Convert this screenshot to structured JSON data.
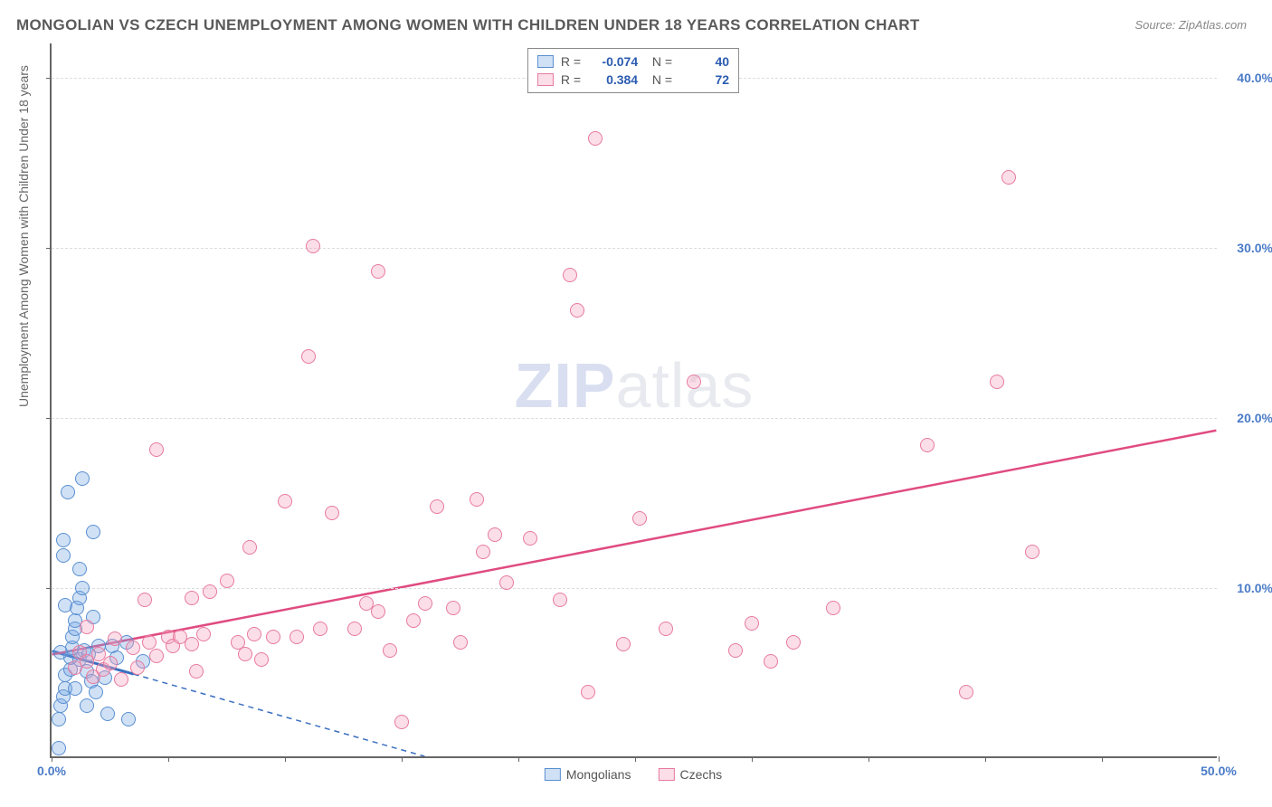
{
  "title": "MONGOLIAN VS CZECH UNEMPLOYMENT AMONG WOMEN WITH CHILDREN UNDER 18 YEARS CORRELATION CHART",
  "source": "Source: ZipAtlas.com",
  "y_label": "Unemployment Among Women with Children Under 18 years",
  "watermark_a": "ZIP",
  "watermark_b": "atlas",
  "chart": {
    "type": "scatter",
    "xlim": [
      0,
      50
    ],
    "ylim": [
      0,
      42
    ],
    "x_ticks": [
      0,
      5,
      10,
      15,
      20,
      25,
      30,
      35,
      40,
      45,
      50
    ],
    "x_tick_labels_shown": {
      "0": "0.0%",
      "50": "50.0%"
    },
    "y_ticks": [
      10,
      20,
      30,
      40
    ],
    "y_tick_labels": {
      "10": "10.0%",
      "20": "20.0%",
      "30": "30.0%",
      "40": "40.0%"
    },
    "grid_color": "#dddddd",
    "axis_color": "#666666",
    "label_color": "#4a7bc8",
    "label_fontsize": 14,
    "marker_radius": 8,
    "marker_stroke_width": 1.5,
    "background_color": "#ffffff"
  },
  "series": [
    {
      "name": "Mongolians",
      "fill": "rgba(120,170,230,0.35)",
      "stroke": "#5a8fd0",
      "R": "-0.074",
      "N": "40",
      "trend": {
        "x1": 0,
        "y1": 6.2,
        "x2": 16,
        "y2": 0,
        "color": "#3a6fc0",
        "width": 2,
        "dash": "6,5",
        "solid_until_x": 3.5
      },
      "points": [
        [
          0.3,
          0.5
        ],
        [
          0.3,
          2.2
        ],
        [
          0.4,
          3.0
        ],
        [
          0.5,
          3.5
        ],
        [
          0.6,
          4.0
        ],
        [
          0.6,
          4.8
        ],
        [
          0.8,
          5.1
        ],
        [
          0.8,
          5.8
        ],
        [
          0.9,
          6.4
        ],
        [
          0.9,
          7.0
        ],
        [
          1.0,
          7.5
        ],
        [
          1.0,
          8.0
        ],
        [
          1.1,
          8.7
        ],
        [
          1.2,
          9.3
        ],
        [
          1.3,
          9.9
        ],
        [
          1.2,
          11.0
        ],
        [
          0.5,
          11.8
        ],
        [
          0.5,
          12.7
        ],
        [
          1.2,
          5.7
        ],
        [
          1.4,
          6.2
        ],
        [
          1.5,
          3.0
        ],
        [
          1.5,
          5.0
        ],
        [
          1.6,
          6.0
        ],
        [
          1.7,
          4.4
        ],
        [
          1.8,
          8.2
        ],
        [
          1.9,
          3.8
        ],
        [
          2.0,
          6.5
        ],
        [
          2.3,
          4.6
        ],
        [
          2.4,
          2.5
        ],
        [
          2.8,
          5.8
        ],
        [
          3.2,
          6.7
        ],
        [
          3.3,
          2.2
        ],
        [
          3.9,
          5.6
        ],
        [
          0.7,
          15.5
        ],
        [
          1.3,
          16.3
        ],
        [
          1.8,
          13.2
        ],
        [
          2.6,
          6.5
        ],
        [
          0.4,
          6.1
        ],
        [
          0.6,
          8.9
        ],
        [
          1.0,
          4.0
        ]
      ]
    },
    {
      "name": "Czechs",
      "fill": "rgba(245,160,190,0.35)",
      "stroke": "#e67aa0",
      "R": "0.384",
      "N": "72",
      "trend": {
        "x1": 0,
        "y1": 6.0,
        "x2": 50,
        "y2": 19.2,
        "color": "#e04b80",
        "width": 2.5,
        "dash": "none"
      },
      "points": [
        [
          1.0,
          5.2
        ],
        [
          1.2,
          6.1
        ],
        [
          1.5,
          5.6
        ],
        [
          1.5,
          7.6
        ],
        [
          1.8,
          4.7
        ],
        [
          2.0,
          6.0
        ],
        [
          2.2,
          5.1
        ],
        [
          2.7,
          6.9
        ],
        [
          3.0,
          4.5
        ],
        [
          3.5,
          6.4
        ],
        [
          3.7,
          5.2
        ],
        [
          4.2,
          6.7
        ],
        [
          4.5,
          5.9
        ],
        [
          4.5,
          18.0
        ],
        [
          5.0,
          7.0
        ],
        [
          5.2,
          6.5
        ],
        [
          5.5,
          7.0
        ],
        [
          6.0,
          6.6
        ],
        [
          6.0,
          9.3
        ],
        [
          6.2,
          5.0
        ],
        [
          6.5,
          7.2
        ],
        [
          7.5,
          10.3
        ],
        [
          8.0,
          6.7
        ],
        [
          8.3,
          6.0
        ],
        [
          8.7,
          7.2
        ],
        [
          9.0,
          5.7
        ],
        [
          9.5,
          7.0
        ],
        [
          10.0,
          15.0
        ],
        [
          10.5,
          7.0
        ],
        [
          11.0,
          23.5
        ],
        [
          11.2,
          30.0
        ],
        [
          12.0,
          14.3
        ],
        [
          13.0,
          7.5
        ],
        [
          13.5,
          9.0
        ],
        [
          14.0,
          8.5
        ],
        [
          14.0,
          28.5
        ],
        [
          14.5,
          6.2
        ],
        [
          15.0,
          2.0
        ],
        [
          15.5,
          8.0
        ],
        [
          16.0,
          9.0
        ],
        [
          17.2,
          8.7
        ],
        [
          17.5,
          6.7
        ],
        [
          18.2,
          15.1
        ],
        [
          18.5,
          12.0
        ],
        [
          19.0,
          13.0
        ],
        [
          20.5,
          12.8
        ],
        [
          21.8,
          9.2
        ],
        [
          22.2,
          28.3
        ],
        [
          22.5,
          26.2
        ],
        [
          23.0,
          3.8
        ],
        [
          23.3,
          36.3
        ],
        [
          24.5,
          6.6
        ],
        [
          25.2,
          14.0
        ],
        [
          26.3,
          7.5
        ],
        [
          27.5,
          22.0
        ],
        [
          29.3,
          6.2
        ],
        [
          30.0,
          7.8
        ],
        [
          30.8,
          5.6
        ],
        [
          31.8,
          6.7
        ],
        [
          33.5,
          8.7
        ],
        [
          37.5,
          18.3
        ],
        [
          39.2,
          3.8
        ],
        [
          40.5,
          22.0
        ],
        [
          41.0,
          34.0
        ],
        [
          42.0,
          12.0
        ],
        [
          8.5,
          12.3
        ],
        [
          16.5,
          14.7
        ],
        [
          19.5,
          10.2
        ],
        [
          11.5,
          7.5
        ],
        [
          6.8,
          9.7
        ],
        [
          4.0,
          9.2
        ],
        [
          2.5,
          5.5
        ]
      ]
    }
  ],
  "legend": {
    "items": [
      "Mongolians",
      "Czechs"
    ]
  }
}
